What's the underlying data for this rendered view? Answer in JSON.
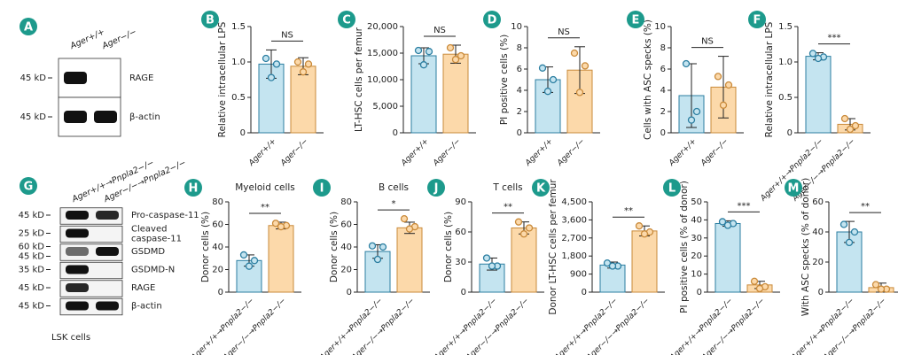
{
  "chart_data": [
    {
      "type": "bar",
      "panel": "B",
      "ylabel": "Relative intracellular LPS",
      "categories": [
        "Ager+/+",
        "Ager−/−"
      ],
      "values": [
        0.97,
        0.94
      ],
      "errors": [
        0.2,
        0.12
      ],
      "points": [
        [
          1.05,
          0.97,
          0.78
        ],
        [
          1.0,
          0.97,
          0.86
        ]
      ],
      "significance": "NS",
      "ylim": [
        0,
        1.5
      ],
      "yticks": [
        0,
        0.5,
        {
          "value": 1,
          "label": "1.0"
        },
        1.5
      ],
      "colors": [
        "#c4e4f0",
        "#fcd9aa"
      ],
      "edge_colors": [
        "#2b7ea1",
        "#c98a3a"
      ]
    },
    {
      "type": "bar",
      "panel": "C",
      "ylabel": "LT-HSC cells per femur",
      "categories": [
        "Ager+/+",
        "Ager−/−"
      ],
      "values": [
        14500,
        14800
      ],
      "errors": [
        1500,
        1700
      ],
      "points": [
        [
          15500,
          15300,
          12800
        ],
        [
          16000,
          14500,
          13800
        ]
      ],
      "significance": "NS",
      "ylim": [
        0,
        20000
      ],
      "yticks": [
        0,
        {
          "value": 5000,
          "label": "5,000"
        },
        {
          "value": 10000,
          "label": "10,000"
        },
        {
          "value": 15000,
          "label": "15,000"
        },
        {
          "value": 20000,
          "label": "20,000"
        }
      ],
      "colors": [
        "#c4e4f0",
        "#fcd9aa"
      ],
      "edge_colors": [
        "#2b7ea1",
        "#c98a3a"
      ]
    },
    {
      "type": "bar",
      "panel": "D",
      "ylabel": "PI positive cells (%)",
      "categories": [
        "Ager+/+",
        "Ager−/−"
      ],
      "values": [
        5.0,
        5.9
      ],
      "errors": [
        1.2,
        2.2
      ],
      "points": [
        [
          6.1,
          5.0,
          3.9
        ],
        [
          7.5,
          6.3,
          3.8
        ]
      ],
      "significance": "NS",
      "ylim": [
        0,
        10
      ],
      "yticks": [
        0,
        2,
        4,
        6,
        8,
        10
      ],
      "colors": [
        "#c4e4f0",
        "#fcd9aa"
      ],
      "edge_colors": [
        "#2b7ea1",
        "#c98a3a"
      ]
    },
    {
      "type": "bar",
      "panel": "E",
      "ylabel": "Cells with ASC specks (%)",
      "categories": [
        "Ager+/+",
        "Ager−/−"
      ],
      "values": [
        3.5,
        4.3
      ],
      "errors": [
        3.0,
        2.9
      ],
      "points": [
        [
          6.5,
          2.0,
          1.2
        ],
        [
          5.3,
          4.5,
          2.6
        ]
      ],
      "significance": "NS",
      "ylim": [
        0,
        10
      ],
      "yticks": [
        0,
        2,
        4,
        6,
        8,
        10
      ],
      "colors": [
        "#c4e4f0",
        "#fcd9aa"
      ],
      "edge_colors": [
        "#2b7ea1",
        "#c98a3a"
      ]
    },
    {
      "type": "bar",
      "panel": "F",
      "ylabel": "Relative intracellular LPS",
      "categories": [
        "Ager+/+→Pnpla2−/−",
        "Ager−/−→Pnpla2−/−"
      ],
      "values": [
        1.08,
        0.12
      ],
      "errors": [
        0.05,
        0.08
      ],
      "points": [
        [
          1.12,
          1.07,
          1.05
        ],
        [
          0.2,
          0.1,
          0.05
        ]
      ],
      "significance": "***",
      "ylim": [
        0,
        1.5
      ],
      "yticks": [
        0,
        0.5,
        {
          "value": 1,
          "label": "1.0"
        },
        1.5
      ],
      "colors": [
        "#c4e4f0",
        "#fcd9aa"
      ],
      "edge_colors": [
        "#2b7ea1",
        "#c98a3a"
      ]
    },
    {
      "type": "bar",
      "panel": "H",
      "title": "Myeloid cells",
      "ylabel": "Donor cells (%)",
      "categories": [
        "Ager+/+→Pnpla2−/−",
        "Ager−/−→Pnpla2−/−"
      ],
      "values": [
        28,
        59
      ],
      "errors": [
        5,
        3
      ],
      "points": [
        [
          33,
          28,
          23
        ],
        [
          61,
          59,
          58
        ]
      ],
      "significance": "**",
      "ylim": [
        0,
        80
      ],
      "yticks": [
        0,
        20,
        40,
        60,
        80
      ],
      "colors": [
        "#c4e4f0",
        "#fcd9aa"
      ],
      "edge_colors": [
        "#2b7ea1",
        "#c98a3a"
      ]
    },
    {
      "type": "bar",
      "panel": "I",
      "title": "B cells",
      "ylabel": "Donor cells (%)",
      "categories": [
        "Ager+/+→Pnpla2−/−",
        "Ager−/−→Pnpla2−/−"
      ],
      "values": [
        36,
        57
      ],
      "errors": [
        6,
        5
      ],
      "points": [
        [
          41,
          40,
          29
        ],
        [
          65,
          58,
          56
        ]
      ],
      "significance": "*",
      "ylim": [
        0,
        80
      ],
      "yticks": [
        0,
        20,
        40,
        60,
        80
      ],
      "colors": [
        "#c4e4f0",
        "#fcd9aa"
      ],
      "edge_colors": [
        "#2b7ea1",
        "#c98a3a"
      ]
    },
    {
      "type": "bar",
      "panel": "J",
      "title": "T cells",
      "ylabel": "Donor cells (%)",
      "categories": [
        "Ager+/+→Pnpla2−/−",
        "Ager−/−→Pnpla2−/−"
      ],
      "values": [
        28,
        64
      ],
      "errors": [
        6,
        6
      ],
      "points": [
        [
          34,
          26,
          26
        ],
        [
          70,
          64,
          58
        ]
      ],
      "significance": "**",
      "ylim": [
        0,
        90
      ],
      "yticks": [
        0,
        30,
        60,
        90
      ],
      "colors": [
        "#c4e4f0",
        "#fcd9aa"
      ],
      "edge_colors": [
        "#2b7ea1",
        "#c98a3a"
      ]
    },
    {
      "type": "bar",
      "panel": "K",
      "ylabel": "Donor LT-HSC cells per femur",
      "categories": [
        "Ager+/+→Pnpla2−/−",
        "Ager−/−→Pnpla2−/−"
      ],
      "values": [
        1350,
        3050
      ],
      "errors": [
        150,
        250
      ],
      "points": [
        [
          1450,
          1300,
          1300
        ],
        [
          3300,
          3000,
          2900
        ]
      ],
      "significance": "**",
      "ylim": [
        0,
        4500
      ],
      "yticks": [
        0,
        900,
        {
          "value": 1800,
          "label": "1,800"
        },
        {
          "value": 2700,
          "label": "2,700"
        },
        {
          "value": 3600,
          "label": "3,600"
        },
        {
          "value": 4500,
          "label": "4,500"
        }
      ],
      "colors": [
        "#c4e4f0",
        "#fcd9aa"
      ],
      "edge_colors": [
        "#2b7ea1",
        "#c98a3a"
      ]
    },
    {
      "type": "bar",
      "panel": "L",
      "ylabel": "PI positive cells (% of donor)",
      "categories": [
        "Ager+/+→Pnpla2−/−",
        "Ager−/−→Pnpla2−/−"
      ],
      "values": [
        38,
        4
      ],
      "errors": [
        1.5,
        2
      ],
      "points": [
        [
          39,
          38,
          37
        ],
        [
          6,
          3,
          2
        ]
      ],
      "significance": "***",
      "ylim": [
        0,
        50
      ],
      "yticks": [
        0,
        10,
        20,
        30,
        40,
        50
      ],
      "colors": [
        "#c4e4f0",
        "#fcd9aa"
      ],
      "edge_colors": [
        "#2b7ea1",
        "#c98a3a"
      ]
    },
    {
      "type": "bar",
      "panel": "M",
      "ylabel": "With ASC specks (% of donor)",
      "categories": [
        "Ager+/+→Pnpla2−/−",
        "Ager−/−→Pnpla2−/−"
      ],
      "values": [
        40,
        3
      ],
      "errors": [
        7,
        3
      ],
      "points": [
        [
          45,
          40,
          33
        ],
        [
          5,
          2,
          2
        ]
      ],
      "significance": "**",
      "ylim": [
        0,
        60
      ],
      "yticks": [
        0,
        20,
        40,
        60
      ],
      "colors": [
        "#c4e4f0",
        "#fcd9aa"
      ],
      "edge_colors": [
        "#2b7ea1",
        "#c98a3a"
      ]
    }
  ],
  "blots": [
    {
      "panel": "A",
      "lanes": [
        "Ager+/+",
        "Ager−/−"
      ],
      "rows": [
        {
          "mw": [
            "45 kD"
          ],
          "label": "RAGE"
        },
        {
          "mw": [
            "45 kD"
          ],
          "label": "β-actin"
        }
      ]
    },
    {
      "panel": "G",
      "lanes": [
        "Ager+/+→Pnpla2−/−",
        "Ager−/−→Pnpla2−/−"
      ],
      "rows": [
        {
          "mw": [
            "45 kD"
          ],
          "label": "Pro-caspase-11"
        },
        {
          "mw": [
            "25 kD"
          ],
          "label": "Cleaved caspase-11"
        },
        {
          "mw": [
            "60 kD",
            "45 kD"
          ],
          "label": "GSDMD"
        },
        {
          "mw": [
            "35 kD"
          ],
          "label": "GSDMD-N"
        },
        {
          "mw": [
            "45 kD"
          ],
          "label": "RAGE"
        },
        {
          "mw": [
            "45 kD"
          ],
          "label": "β-actin"
        }
      ],
      "footer": "LSK cells"
    }
  ]
}
